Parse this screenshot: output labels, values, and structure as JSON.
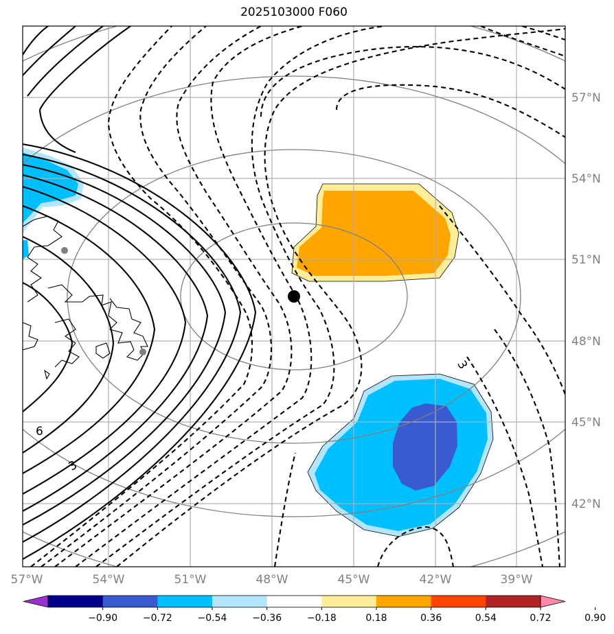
{
  "title": "2025103000 F060",
  "map": {
    "lon_ticks": [
      "57°W",
      "54°W",
      "51°W",
      "48°W",
      "45°W",
      "42°W",
      "39°W"
    ],
    "lat_ticks": [
      "57°N",
      "54°N",
      "51°N",
      "48°N",
      "45°N",
      "42°N"
    ],
    "contour_labels": [
      "6",
      "3",
      "3"
    ],
    "center_marker": "black-dot",
    "colors": {
      "grid": "#b0b0b0",
      "range_rings": "#808080",
      "positive_contour": "#000000",
      "negative_contour": "#000000",
      "shade_orange": "#ffa500",
      "shade_light_yellow": "#ffee99",
      "shade_cyan": "#00bfff",
      "shade_light_blue": "#b3e5fc",
      "shade_dark_blue": "#3a5bd0"
    }
  },
  "colorbar": {
    "labels": [
      "−0.90",
      "−0.72",
      "−0.54",
      "−0.36",
      "−0.18",
      "0.18",
      "0.36",
      "0.54",
      "0.72",
      "0.90"
    ],
    "colors": [
      "#9933cc",
      "#00008b",
      "#3a5bd0",
      "#00bfff",
      "#b3e5fc",
      "#ffffff",
      "#ffee99",
      "#ffa500",
      "#ff4500",
      "#b22222",
      "#ff88aa"
    ]
  }
}
